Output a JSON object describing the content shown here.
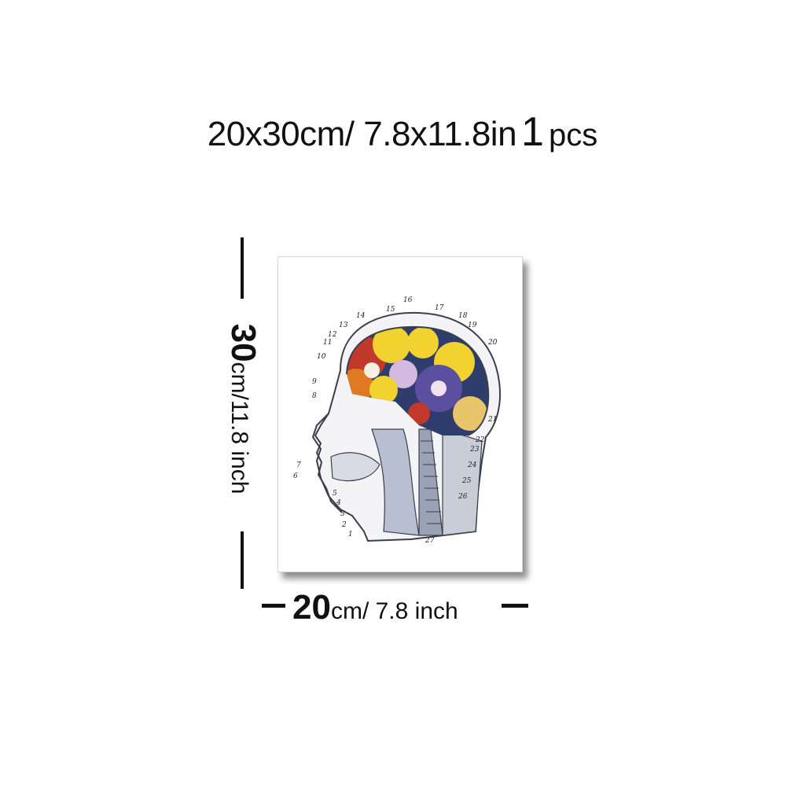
{
  "headline": {
    "size": "20x30cm/ 7.8x11.8in",
    "quantity": "1",
    "unit": "pcs"
  },
  "height_label": {
    "value": "30",
    "unit": "cm/11.8 inch"
  },
  "width_label": {
    "value": "20",
    "unit": "cm/ 7.8 inch"
  },
  "artwork": {
    "subject": "head cross-section with flowers in brain",
    "callout_numbers": [
      "1",
      "2",
      "3",
      "4",
      "5",
      "6",
      "7",
      "8",
      "9",
      "10",
      "11",
      "12",
      "13",
      "14",
      "15",
      "16",
      "17",
      "18",
      "19",
      "20",
      "21",
      "22",
      "23",
      "24",
      "25",
      "26",
      "27"
    ],
    "colors": {
      "purple_flower": "#5b4fa0",
      "yellow_flower": "#f2d22e",
      "orange_flower": "#e07a22",
      "red_flower": "#c0392b",
      "navy_fill": "#2e3d6b",
      "line_art": "#3a3f4a"
    }
  }
}
